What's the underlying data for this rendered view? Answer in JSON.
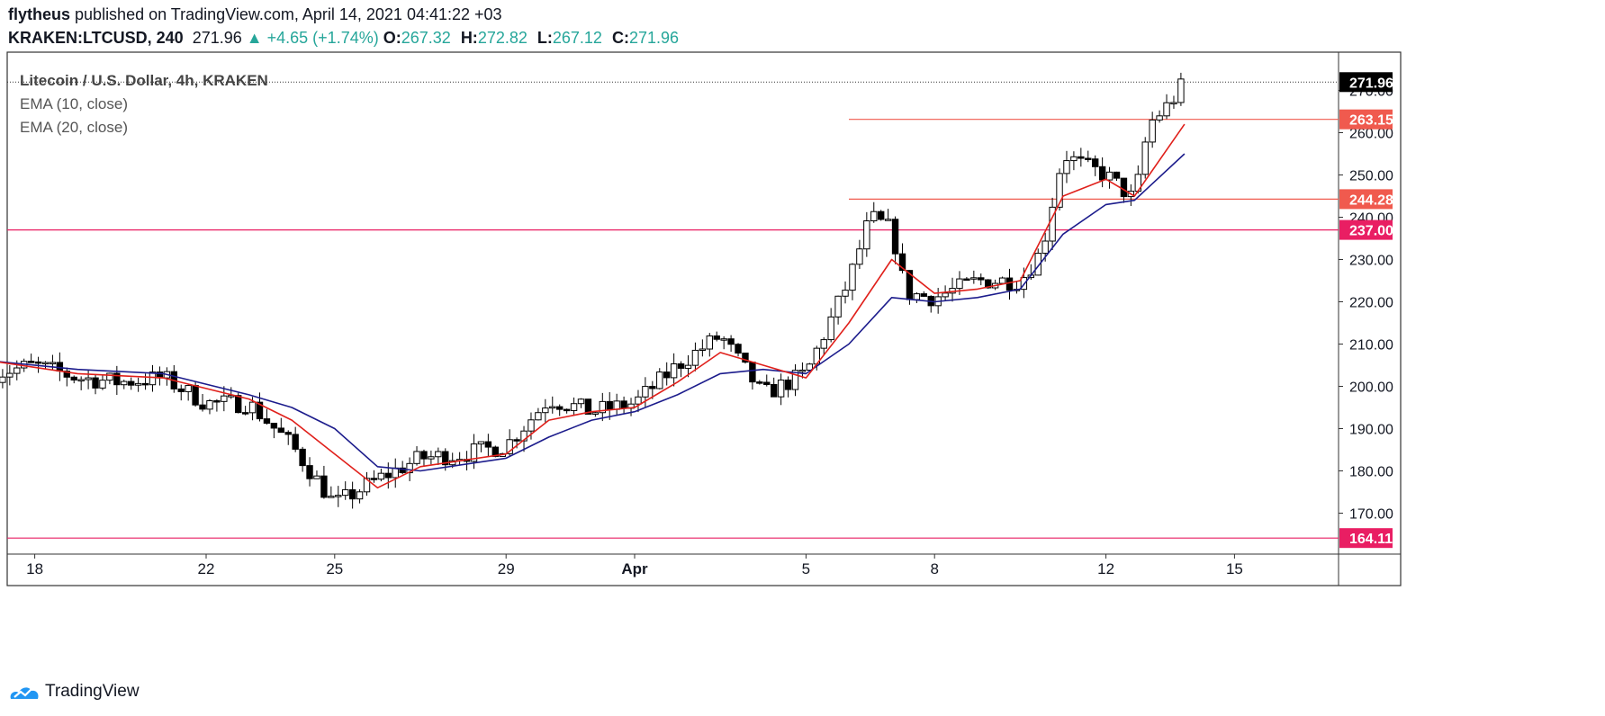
{
  "header": {
    "author": "flytheus",
    "published_text": "published on TradingView.com, April 14, 2021 04:41:22 +03",
    "symbol": "KRAKEN:LTCUSD, 240",
    "last": "271.96",
    "change": "+4.65 (+1.74%)",
    "o_label": "O:",
    "o": "267.32",
    "h_label": "H:",
    "h": "272.82",
    "l_label": "L:",
    "l": "267.12",
    "c_label": "C:",
    "c": "271.96"
  },
  "legend": {
    "title": "Litecoin / U.S. Dollar, 4h, KRAKEN",
    "ema10": "EMA (10, close)",
    "ema20": "EMA (20, close)"
  },
  "footer": {
    "brand": "TradingView"
  },
  "colors": {
    "up": "#26a69a",
    "candle_up_fill": "#ffffff",
    "candle_down_fill": "#000000",
    "ema10": "#e0201b",
    "ema20": "#1c1c8c",
    "hline_red": "#f05a4e",
    "hline_pink": "#e91e63",
    "last_price_bg": "#000000"
  },
  "chart_data": {
    "type": "candlestick",
    "ylim": [
      160,
      280
    ],
    "y_ticks": [
      "170.00",
      "180.00",
      "190.00",
      "200.00",
      "210.00",
      "220.00",
      "230.00",
      "240.00",
      "250.00",
      "260.00",
      "270.00"
    ],
    "x_ticks": [
      {
        "label": "18",
        "date": "2021-03-18"
      },
      {
        "label": "22",
        "date": "2021-03-22"
      },
      {
        "label": "25",
        "date": "2021-03-25"
      },
      {
        "label": "29",
        "date": "2021-03-29"
      },
      {
        "label": "Apr",
        "date": "2021-04-01"
      },
      {
        "label": "5",
        "date": "2021-04-05"
      },
      {
        "label": "8",
        "date": "2021-04-08"
      },
      {
        "label": "12",
        "date": "2021-04-12"
      },
      {
        "label": "15",
        "date": "2021-04-15"
      }
    ],
    "horizontal_lines": [
      {
        "price": 263.15,
        "label": "263.15",
        "color": "#f05a4e",
        "from_date": "2021-04-06"
      },
      {
        "price": 244.28,
        "label": "244.28",
        "color": "#f05a4e",
        "from_date": "2021-04-06"
      },
      {
        "price": 237.0,
        "label": "237.00",
        "color": "#e91e63",
        "from_date": "2021-03-17"
      },
      {
        "price": 164.11,
        "label": "164.11",
        "color": "#e91e63",
        "from_date": "2021-03-17"
      }
    ],
    "last_price": {
      "price": 271.96,
      "label": "271.96"
    },
    "close_path": [
      {
        "date": "2021-03-17",
        "close": 203
      },
      {
        "date": "2021-03-18",
        "close": 205
      },
      {
        "date": "2021-03-19",
        "close": 202
      },
      {
        "date": "2021-03-20",
        "close": 201
      },
      {
        "date": "2021-03-21",
        "close": 202
      },
      {
        "date": "2021-03-22",
        "close": 196
      },
      {
        "date": "2021-03-23",
        "close": 196
      },
      {
        "date": "2021-03-24",
        "close": 186
      },
      {
        "date": "2021-03-25",
        "close": 172
      },
      {
        "date": "2021-03-26",
        "close": 178
      },
      {
        "date": "2021-03-27",
        "close": 183
      },
      {
        "date": "2021-03-28",
        "close": 184
      },
      {
        "date": "2021-03-29",
        "close": 186
      },
      {
        "date": "2021-03-30",
        "close": 197
      },
      {
        "date": "2021-03-31",
        "close": 194
      },
      {
        "date": "2021-04-01",
        "close": 196
      },
      {
        "date": "2021-04-02",
        "close": 205
      },
      {
        "date": "2021-04-03",
        "close": 212
      },
      {
        "date": "2021-04-04",
        "close": 198
      },
      {
        "date": "2021-04-05",
        "close": 203
      },
      {
        "date": "2021-04-06",
        "close": 225
      },
      {
        "date": "2021-04-06 12:00",
        "close": 240
      },
      {
        "date": "2021-04-07",
        "close": 237
      },
      {
        "date": "2021-04-07 08:00",
        "close": 222
      },
      {
        "date": "2021-04-08",
        "close": 221
      },
      {
        "date": "2021-04-09",
        "close": 225
      },
      {
        "date": "2021-04-10",
        "close": 225
      },
      {
        "date": "2021-04-10 12:00",
        "close": 232
      },
      {
        "date": "2021-04-11",
        "close": 255
      },
      {
        "date": "2021-04-11 12:00",
        "close": 252
      },
      {
        "date": "2021-04-12",
        "close": 250
      },
      {
        "date": "2021-04-12 16:00",
        "close": 244
      },
      {
        "date": "2021-04-13",
        "close": 262
      },
      {
        "date": "2021-04-13 12:00",
        "close": 267
      },
      {
        "date": "2021-04-13 20:00",
        "close": 271.96
      }
    ],
    "ema10_path": [
      {
        "date": "2021-03-17",
        "value": 206
      },
      {
        "date": "2021-03-19",
        "value": 203
      },
      {
        "date": "2021-03-21",
        "value": 202
      },
      {
        "date": "2021-03-23",
        "value": 197
      },
      {
        "date": "2021-03-24",
        "value": 192
      },
      {
        "date": "2021-03-25",
        "value": 184
      },
      {
        "date": "2021-03-26",
        "value": 176
      },
      {
        "date": "2021-03-27",
        "value": 181
      },
      {
        "date": "2021-03-29",
        "value": 184
      },
      {
        "date": "2021-03-30",
        "value": 192
      },
      {
        "date": "2021-03-31",
        "value": 194
      },
      {
        "date": "2021-04-01",
        "value": 195
      },
      {
        "date": "2021-04-02",
        "value": 201
      },
      {
        "date": "2021-04-03",
        "value": 208
      },
      {
        "date": "2021-04-04",
        "value": 205
      },
      {
        "date": "2021-04-05",
        "value": 202
      },
      {
        "date": "2021-04-06",
        "value": 215
      },
      {
        "date": "2021-04-07",
        "value": 230
      },
      {
        "date": "2021-04-08",
        "value": 222
      },
      {
        "date": "2021-04-09",
        "value": 223
      },
      {
        "date": "2021-04-10",
        "value": 225
      },
      {
        "date": "2021-04-11",
        "value": 245
      },
      {
        "date": "2021-04-12",
        "value": 249
      },
      {
        "date": "2021-04-12 16:00",
        "value": 245
      },
      {
        "date": "2021-04-13 20:00",
        "value": 262
      }
    ],
    "ema20_path": [
      {
        "date": "2021-03-17",
        "value": 206
      },
      {
        "date": "2021-03-19",
        "value": 204
      },
      {
        "date": "2021-03-21",
        "value": 203
      },
      {
        "date": "2021-03-23",
        "value": 198
      },
      {
        "date": "2021-03-24",
        "value": 195
      },
      {
        "date": "2021-03-25",
        "value": 190
      },
      {
        "date": "2021-03-26",
        "value": 181
      },
      {
        "date": "2021-03-27",
        "value": 180
      },
      {
        "date": "2021-03-29",
        "value": 183
      },
      {
        "date": "2021-03-30",
        "value": 188
      },
      {
        "date": "2021-03-31",
        "value": 192
      },
      {
        "date": "2021-04-01",
        "value": 194
      },
      {
        "date": "2021-04-02",
        "value": 198
      },
      {
        "date": "2021-04-03",
        "value": 203
      },
      {
        "date": "2021-04-04",
        "value": 204
      },
      {
        "date": "2021-04-05",
        "value": 203
      },
      {
        "date": "2021-04-06",
        "value": 210
      },
      {
        "date": "2021-04-07",
        "value": 221
      },
      {
        "date": "2021-04-08",
        "value": 220
      },
      {
        "date": "2021-04-09",
        "value": 221
      },
      {
        "date": "2021-04-10",
        "value": 223
      },
      {
        "date": "2021-04-11",
        "value": 236
      },
      {
        "date": "2021-04-12",
        "value": 243
      },
      {
        "date": "2021-04-12 16:00",
        "value": 244
      },
      {
        "date": "2021-04-13 20:00",
        "value": 255
      }
    ]
  }
}
